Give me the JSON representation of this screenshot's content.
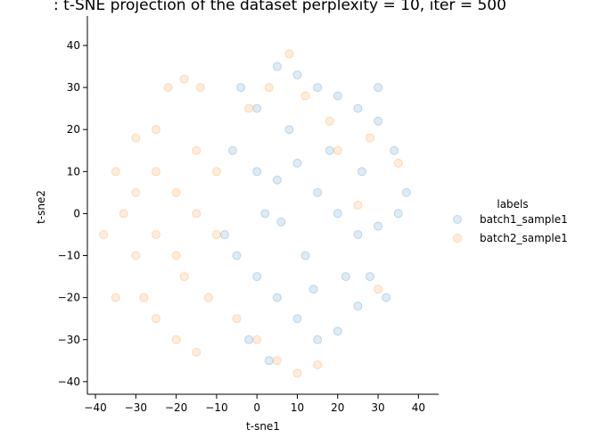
{
  "chart_data": {
    "type": "scatter",
    "title": ": t-SNE projection of the dataset perplexity = 10, iter = 500",
    "xlabel": "t-sne1",
    "ylabel": "t-sne2",
    "xlim": [
      -42,
      45
    ],
    "ylim": [
      -43,
      47
    ],
    "xticks": [
      -40,
      -30,
      -20,
      -10,
      0,
      10,
      20,
      30,
      40
    ],
    "yticks": [
      -40,
      -30,
      -20,
      -10,
      0,
      10,
      20,
      30,
      40
    ],
    "grid": false,
    "legend": {
      "title": "labels",
      "placement": "right"
    },
    "series": [
      {
        "name": "batch1_sample1",
        "color": "#1f77b4",
        "opacity": 0.15,
        "points": [
          [
            -4,
            30
          ],
          [
            0,
            25
          ],
          [
            5,
            35
          ],
          [
            10,
            33
          ],
          [
            15,
            30
          ],
          [
            20,
            28
          ],
          [
            25,
            25
          ],
          [
            30,
            22
          ],
          [
            34,
            15
          ],
          [
            -6,
            15
          ],
          [
            0,
            10
          ],
          [
            5,
            8
          ],
          [
            10,
            12
          ],
          [
            15,
            5
          ],
          [
            20,
            0
          ],
          [
            25,
            -5
          ],
          [
            30,
            -3
          ],
          [
            35,
            0
          ],
          [
            -8,
            -5
          ],
          [
            -5,
            -10
          ],
          [
            0,
            -15
          ],
          [
            5,
            -20
          ],
          [
            10,
            -25
          ],
          [
            15,
            -30
          ],
          [
            20,
            -28
          ],
          [
            25,
            -22
          ],
          [
            28,
            -15
          ],
          [
            32,
            -20
          ],
          [
            37,
            5
          ],
          [
            -2,
            -30
          ],
          [
            3,
            -35
          ],
          [
            8,
            20
          ],
          [
            12,
            -10
          ],
          [
            18,
            15
          ],
          [
            22,
            -15
          ],
          [
            26,
            10
          ],
          [
            30,
            30
          ],
          [
            6,
            -2
          ],
          [
            14,
            -18
          ],
          [
            2,
            0
          ]
        ]
      },
      {
        "name": "batch2_sample1",
        "color": "#ff7f0e",
        "opacity": 0.15,
        "points": [
          [
            -35,
            10
          ],
          [
            -33,
            0
          ],
          [
            -30,
            -10
          ],
          [
            -28,
            -20
          ],
          [
            -25,
            -25
          ],
          [
            -20,
            -30
          ],
          [
            -15,
            -33
          ],
          [
            -22,
            30
          ],
          [
            -18,
            32
          ],
          [
            -14,
            30
          ],
          [
            -30,
            18
          ],
          [
            -25,
            10
          ],
          [
            -20,
            5
          ],
          [
            -15,
            0
          ],
          [
            -10,
            -5
          ],
          [
            -38,
            -5
          ],
          [
            -35,
            -20
          ],
          [
            -25,
            20
          ],
          [
            -12,
            -20
          ],
          [
            -18,
            -15
          ],
          [
            -30,
            5
          ],
          [
            -25,
            -5
          ],
          [
            -20,
            -10
          ],
          [
            -15,
            15
          ],
          [
            -10,
            10
          ],
          [
            -2,
            25
          ],
          [
            3,
            30
          ],
          [
            8,
            38
          ],
          [
            12,
            28
          ],
          [
            18,
            22
          ],
          [
            20,
            15
          ],
          [
            25,
            2
          ],
          [
            30,
            -18
          ],
          [
            5,
            -35
          ],
          [
            10,
            -38
          ],
          [
            15,
            -36
          ],
          [
            0,
            -30
          ],
          [
            -5,
            -25
          ],
          [
            35,
            12
          ],
          [
            28,
            18
          ]
        ]
      }
    ]
  }
}
